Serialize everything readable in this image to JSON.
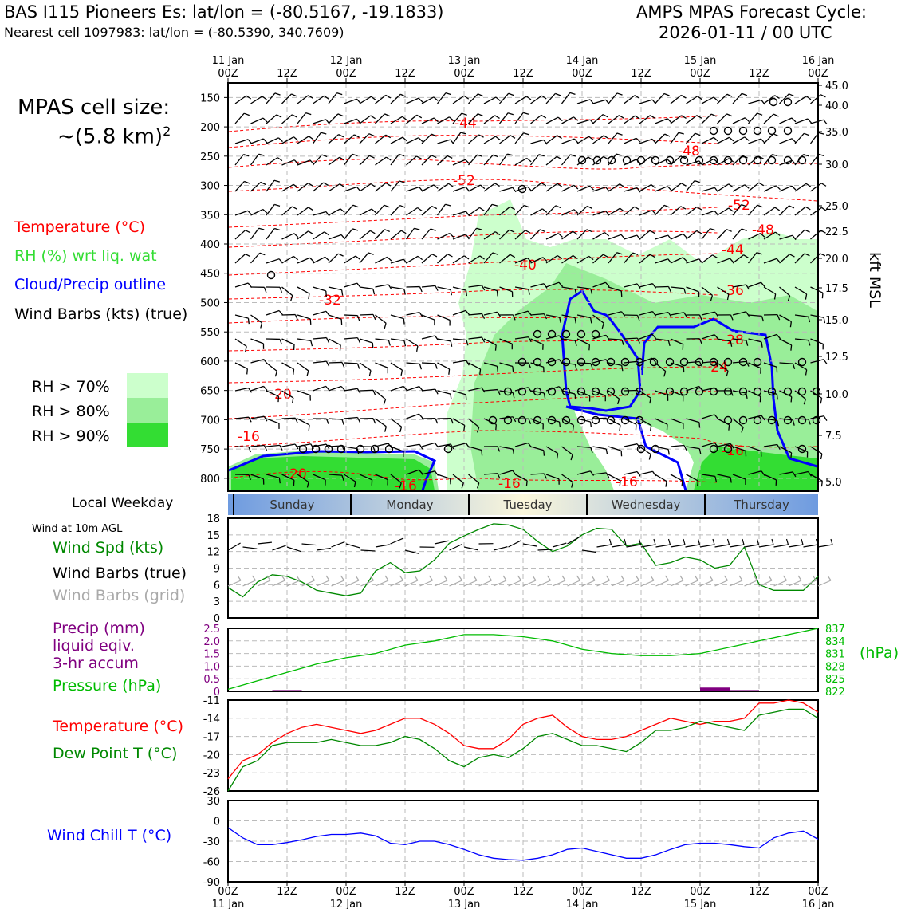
{
  "header": {
    "station": "BAS I115 Pioneers Es: lat/lon = (-80.5167, -19.1833)",
    "nearest": "Nearest cell 1097983: lat/lon = (-80.5390, 340.7609)",
    "cycle_title": "AMPS MPAS Forecast Cycle:",
    "cycle": "2026-01-11 / 00 UTC"
  },
  "legend": {
    "cell_size": "MPAS cell size:",
    "cell_value": "~(5.8 km)",
    "cell_exp": "2",
    "temperature": "Temperature (°C)",
    "rh": "RH (%) wrt liq. wat",
    "cloud": "Cloud/Precip outline",
    "wind_barbs": "Wind Barbs (kts) (true)",
    "rh70": "RH > 70%",
    "rh80": "RH > 80%",
    "rh90": "RH > 90%",
    "local_weekday": "Local Weekday",
    "wind10m": "Wind at 10m AGL",
    "wind_spd": "Wind Spd (kts)",
    "barbs_true": "Wind Barbs (true)",
    "barbs_grid": "Wind Barbs (grid)",
    "precip1": "Precip (mm)",
    "precip2": "liquid eqiv.",
    "precip3": "3-hr accum",
    "pressure": "Pressure (hPa)",
    "temp2": "Temperature (°C)",
    "dewpoint": "Dew Point T (°C)",
    "windchill": "Wind Chill T (°C)",
    "hpa_unit": "(hPa)",
    "kft_label": "kft MSL"
  },
  "colors": {
    "temp": "#ff0000",
    "rh_label": "#33dd33",
    "cloud": "#0000ff",
    "wind_spd": "#008800",
    "grid_barbs": "#aaaaaa",
    "precip": "#800080",
    "pressure": "#00bb00",
    "rh70": "#ccffcc",
    "rh80": "#99ee99",
    "rh90": "#33dd33"
  },
  "chart_data": [
    {
      "type": "time-height",
      "name": "profile",
      "top_ticks": [
        {
          "t": 0,
          "label": "11 Jan\n00Z"
        },
        {
          "t": 12,
          "label": "12Z"
        },
        {
          "t": 24,
          "label": "12 Jan\n00Z"
        },
        {
          "t": 36,
          "label": "12Z"
        },
        {
          "t": 48,
          "label": "13 Jan\n00Z"
        },
        {
          "t": 60,
          "label": "12Z"
        },
        {
          "t": 72,
          "label": "14 Jan\n00Z"
        },
        {
          "t": 84,
          "label": "12Z"
        },
        {
          "t": 96,
          "label": "15 Jan\n00Z"
        },
        {
          "t": 108,
          "label": "12Z"
        },
        {
          "t": 120,
          "label": "16 Jan\n00Z"
        }
      ],
      "pressure_ticks": [
        150,
        200,
        250,
        300,
        350,
        400,
        450,
        500,
        550,
        600,
        650,
        700,
        750,
        800
      ],
      "kft_ticks": [
        "45.0",
        "40.0",
        "35.0",
        "30.0",
        "25.0",
        "22.5",
        "20.0",
        "17.5",
        "15.0",
        "12.5",
        "10.0",
        "7.5",
        "5.0"
      ],
      "temp_labels": [
        "-44",
        "-48",
        "-52",
        "-52",
        "-48",
        "-44",
        "-40",
        "-36",
        "-32",
        "-28",
        "-24",
        "-20",
        "-16",
        "-16",
        "-20",
        "-16",
        "-16",
        "-16"
      ],
      "weekdays": [
        "Sunday",
        "Monday",
        "Tuesday",
        "Wednesday",
        "Thursday"
      ]
    },
    {
      "type": "line",
      "name": "wind10m",
      "ylim": [
        0,
        18
      ],
      "yticks": [
        "0",
        "3",
        "6",
        "9",
        "12",
        "15",
        "18"
      ],
      "series": [
        {
          "name": "Wind Spd (kts)",
          "x": [
            0,
            3,
            6,
            9,
            12,
            15,
            18,
            21,
            24,
            27,
            30,
            33,
            36,
            39,
            42,
            45,
            48,
            51,
            54,
            57,
            60,
            63,
            66,
            69,
            72,
            75,
            78,
            81,
            84,
            87,
            90,
            93,
            96,
            99,
            102,
            105,
            108,
            111,
            114,
            117,
            120
          ],
          "values": [
            5.5,
            3.8,
            6.5,
            7.8,
            7.5,
            6.5,
            5,
            4.5,
            4,
            4.5,
            8.5,
            10,
            8.2,
            8.5,
            10.5,
            13.5,
            14.8,
            16,
            17,
            16.8,
            16,
            13.8,
            12,
            13,
            15,
            16.2,
            16,
            13,
            13.5,
            9.5,
            10,
            11,
            10.5,
            9,
            9.5,
            12.8,
            6,
            5,
            5,
            5,
            7.5
          ]
        }
      ]
    },
    {
      "type": "line+bar",
      "name": "precip_pressure",
      "precip_ylim": [
        0,
        2.5
      ],
      "precip_yticks": [
        "0",
        "0.5",
        "1.0",
        "1.5",
        "2.0",
        "2.5"
      ],
      "pressure_ylim": [
        822,
        837
      ],
      "pressure_yticks": [
        "822",
        "825",
        "828",
        "831",
        "834",
        "837"
      ],
      "pressure": {
        "x": [
          0,
          6,
          12,
          18,
          24,
          30,
          36,
          42,
          48,
          54,
          60,
          66,
          72,
          78,
          84,
          90,
          96,
          102,
          108,
          114,
          120
        ],
        "values": [
          822.5,
          824.5,
          826.5,
          828.5,
          830,
          831,
          833,
          834,
          835.5,
          835.5,
          835,
          834,
          832,
          831,
          830.5,
          830.5,
          831,
          832.5,
          834,
          835.5,
          837
        ]
      },
      "precip": [
        {
          "t0": 9,
          "t1": 15,
          "value": 0.05
        },
        {
          "t0": 96,
          "t1": 102,
          "value": 0.15
        },
        {
          "t0": 102,
          "t1": 108,
          "value": 0.05
        }
      ]
    },
    {
      "type": "line",
      "name": "temperature",
      "ylim": [
        -26,
        -11
      ],
      "yticks": [
        "-26",
        "-23",
        "-20",
        "-17",
        "-14",
        "-11"
      ],
      "series": [
        {
          "name": "Temperature (°C)",
          "x": [
            0,
            3,
            6,
            9,
            12,
            15,
            18,
            21,
            24,
            27,
            30,
            33,
            36,
            39,
            42,
            45,
            48,
            51,
            54,
            57,
            60,
            63,
            66,
            69,
            72,
            75,
            78,
            81,
            84,
            87,
            90,
            93,
            96,
            99,
            102,
            105,
            108,
            111,
            114,
            117,
            120
          ],
          "values": [
            -24,
            -21,
            -20,
            -18,
            -16.5,
            -15.5,
            -15,
            -15.5,
            -16,
            -16.5,
            -16,
            -15,
            -14,
            -14,
            -15,
            -16.5,
            -18.5,
            -19,
            -19,
            -17.5,
            -15,
            -14,
            -13.5,
            -15.5,
            -17,
            -17.5,
            -17.5,
            -17,
            -16,
            -15,
            -14,
            -14.5,
            -15,
            -14.5,
            -14.5,
            -14,
            -11.5,
            -11.5,
            -11,
            -11.5,
            -13
          ]
        },
        {
          "name": "Dew Point T (°C)",
          "x": [
            0,
            3,
            6,
            9,
            12,
            15,
            18,
            21,
            24,
            27,
            30,
            33,
            36,
            39,
            42,
            45,
            48,
            51,
            54,
            57,
            60,
            63,
            66,
            69,
            72,
            75,
            78,
            81,
            84,
            87,
            90,
            93,
            96,
            99,
            102,
            105,
            108,
            111,
            114,
            117,
            120
          ],
          "values": [
            -26,
            -22,
            -21,
            -18.5,
            -18,
            -18,
            -18,
            -17.5,
            -18,
            -18.5,
            -18.5,
            -18,
            -17,
            -17.5,
            -19,
            -21,
            -22,
            -20.5,
            -20,
            -20.5,
            -19,
            -17,
            -16.5,
            -17.5,
            -18.5,
            -18.5,
            -19,
            -19.5,
            -18,
            -16,
            -16,
            -15.5,
            -14.5,
            -15,
            -15.5,
            -16,
            -13.5,
            -13,
            -12.5,
            -12.5,
            -14
          ]
        }
      ]
    },
    {
      "type": "line",
      "name": "windchill",
      "ylim": [
        -90,
        30
      ],
      "yticks": [
        "-90",
        "-60",
        "-30",
        "0",
        "30"
      ],
      "series": [
        {
          "name": "Wind Chill T (°C)",
          "x": [
            0,
            3,
            6,
            9,
            12,
            15,
            18,
            21,
            24,
            27,
            30,
            33,
            36,
            39,
            42,
            45,
            48,
            51,
            54,
            57,
            60,
            63,
            66,
            69,
            72,
            75,
            78,
            81,
            84,
            87,
            90,
            93,
            96,
            99,
            102,
            105,
            108,
            111,
            114,
            117,
            120
          ],
          "values": [
            -10,
            -25,
            -35,
            -35,
            -32,
            -28,
            -23,
            -20,
            -20,
            -18,
            -22,
            -33,
            -35,
            -30,
            -30,
            -35,
            -42,
            -50,
            -55,
            -57,
            -58,
            -55,
            -50,
            -42,
            -40,
            -45,
            -50,
            -55,
            -55,
            -50,
            -42,
            -35,
            -33,
            -33,
            -35,
            -38,
            -40,
            -25,
            -18,
            -15,
            -27
          ]
        }
      ]
    }
  ],
  "bottom_axis": {
    "ticks": [
      "00Z",
      "12Z",
      "00Z",
      "12Z",
      "00Z",
      "12Z",
      "00Z",
      "12Z",
      "00Z",
      "12Z",
      "00Z"
    ],
    "dates": [
      "11 Jan",
      "12 Jan",
      "13 Jan",
      "14 Jan",
      "15 Jan",
      "16 Jan"
    ]
  }
}
